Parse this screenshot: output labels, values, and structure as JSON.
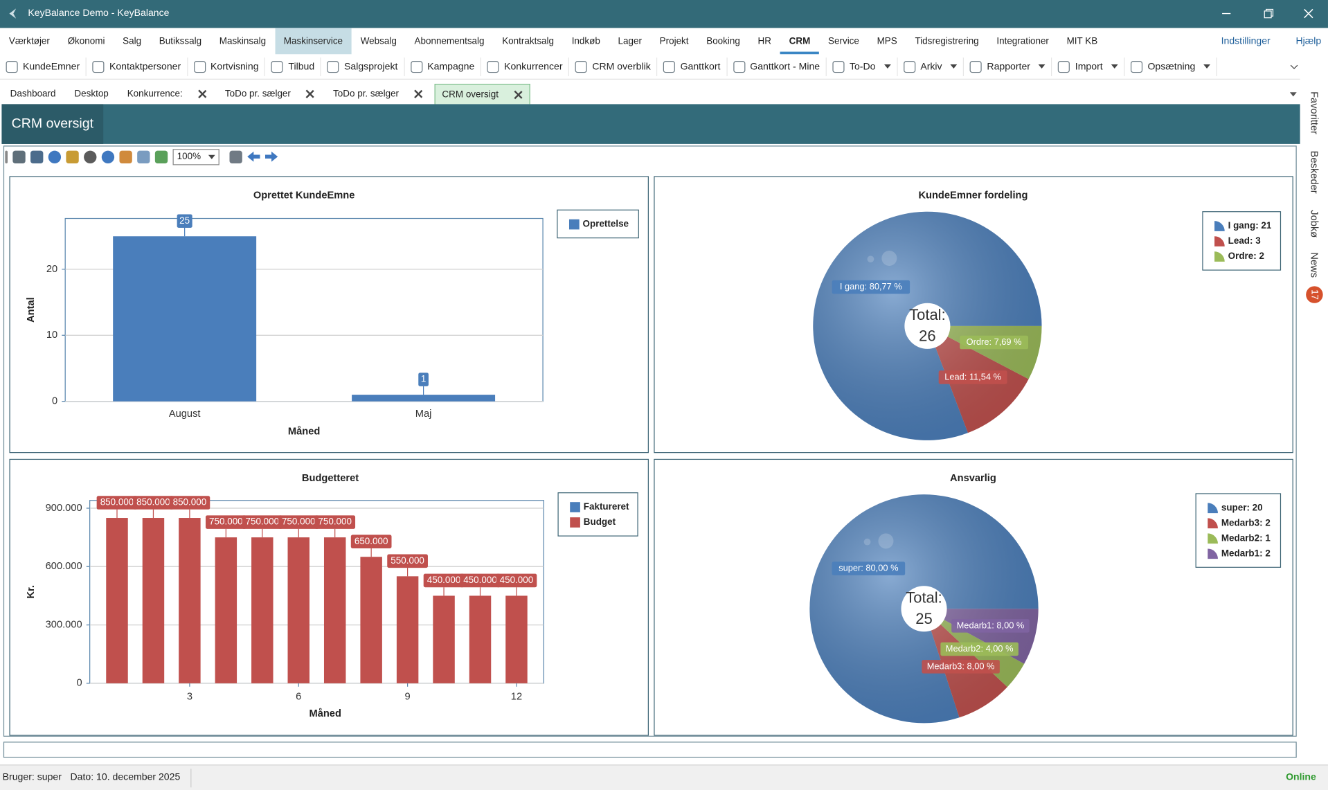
{
  "window": {
    "title": "KeyBalance Demo - KeyBalance"
  },
  "menu": {
    "items": [
      "Værktøjer",
      "Økonomi",
      "Salg",
      "Butikssalg",
      "Maskinsalg",
      "Maskinservice",
      "Websalg",
      "Abonnementsalg",
      "Kontraktsalg",
      "Indkøb",
      "Lager",
      "Projekt",
      "Booking",
      "HR",
      "CRM",
      "Service",
      "MPS",
      "Tidsregistrering",
      "Integrationer",
      "MIT KB"
    ],
    "right": [
      "Indstillinger",
      "Hjælp"
    ]
  },
  "toolbar": [
    "KundeEmner",
    "Kontaktpersoner",
    "Kortvisning",
    "Tilbud",
    "Salgsprojekt",
    "Kampagne",
    "Konkurrencer",
    "CRM overblik",
    "Ganttkort",
    "Ganttkort - Mine",
    "To-Do",
    "Arkiv",
    "Rapporter",
    "Import",
    "Opsætning"
  ],
  "tabs": [
    "Dashboard",
    "Desktop",
    "Konkurrence:",
    "ToDo pr. sælger",
    "ToDo pr. sælger",
    "CRM oversigt"
  ],
  "page_header": "CRM oversigt",
  "zoom": "100%",
  "side_tabs": [
    "Favoritter",
    "Beskeder",
    "Jobkø",
    "News"
  ],
  "news_badge": 17,
  "status": {
    "user": "Bruger: super",
    "date": "Dato: 10. december 2025",
    "online": "Online"
  },
  "chart_data": [
    {
      "type": "bar",
      "title": "Oprettet KundeEmne",
      "categories": [
        "August",
        "Maj"
      ],
      "series": [
        {
          "name": "Oprettelse",
          "color": "#4a7ebb",
          "values": [
            25,
            1
          ],
          "show_labels": true
        }
      ],
      "xlabel": "Måned",
      "ylabel": "Antal",
      "ylim": [
        0,
        27.7
      ],
      "yticks": [
        0,
        10,
        20
      ],
      "grid": true,
      "legend": "right"
    },
    {
      "type": "pie",
      "title": "KundeEmner fordeling",
      "values": [
        21,
        3,
        2
      ],
      "colors": [
        "#4a7ebb",
        "#c0504d",
        "#9bbb59"
      ],
      "labels": [
        "I gang: 21",
        "Lead: 3",
        "Ordre: 2"
      ],
      "slice_labels": [
        "I gang: 80,77 %",
        "Lead: 11,54 %",
        "Ordre: 7,69 %"
      ],
      "center_label": "Total:",
      "total": 26,
      "legend": "right"
    },
    {
      "type": "bar",
      "title": "Budgetteret",
      "x": [
        1,
        2,
        3,
        4,
        5,
        6,
        7,
        8,
        9,
        10,
        11,
        12
      ],
      "series": [
        {
          "name": "Faktureret",
          "color": "#4a7ebb",
          "values": [
            0,
            0,
            0,
            0,
            0,
            0,
            0,
            0,
            0,
            0,
            0,
            0
          ]
        },
        {
          "name": "Budget",
          "color": "#c0504d",
          "show_labels": true,
          "values": [
            850000,
            850000,
            850000,
            750000,
            750000,
            750000,
            750000,
            650000,
            550000,
            450000,
            450000,
            450000
          ],
          "value_labels": [
            "850.000",
            "850.000",
            "850.000",
            "750.000",
            "750.000",
            "750.000",
            "750.000",
            "650.000",
            "550.000",
            "450.000",
            "450.000",
            "450.000"
          ]
        }
      ],
      "xlabel": "Måned",
      "ylabel": "Kr.",
      "xlim": [
        0.25,
        12.75
      ],
      "xticks": [
        3,
        6,
        9,
        12
      ],
      "ylim": [
        0,
        940000
      ],
      "yticks": [
        0,
        {
          "value": 300000,
          "label": "300.000"
        },
        {
          "value": 600000,
          "label": "600.000"
        },
        {
          "value": 900000,
          "label": "900.000"
        }
      ],
      "grid": true,
      "legend": "right"
    },
    {
      "type": "pie",
      "title": "Ansvarlig",
      "values": [
        20,
        2,
        1,
        2
      ],
      "colors": [
        "#4a7ebb",
        "#c0504d",
        "#9bbb59",
        "#8064a2"
      ],
      "labels": [
        "super: 20",
        "Medarb3: 2",
        "Medarb2: 1",
        "Medarb1: 2"
      ],
      "slice_labels": [
        "super: 80,00 %",
        "Medarb3: 8,00 %",
        "Medarb2: 4,00 %",
        "Medarb1: 8,00 %"
      ],
      "center_label": "Total:",
      "total": 25,
      "legend": "right"
    }
  ]
}
